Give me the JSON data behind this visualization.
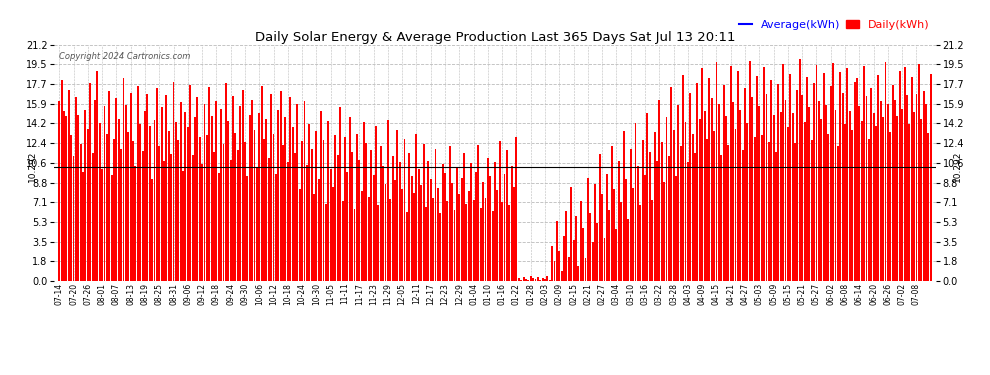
{
  "title": "Daily Solar Energy & Average Production Last 365 Days Sat Jul 13 20:11",
  "copyright": "Copyright 2024 Cartronics.com",
  "legend_average": "Average(kWh)",
  "legend_daily": "Daily(kWh)",
  "average_value": 10.292,
  "average_label": "10.292",
  "yticks": [
    0.0,
    1.8,
    3.5,
    5.3,
    7.1,
    8.8,
    10.6,
    12.4,
    14.2,
    15.9,
    17.7,
    19.5,
    21.2
  ],
  "bar_color": "#ff0000",
  "avg_line_color": "#000000",
  "background_color": "#ffffff",
  "grid_color": "#bbbbbb",
  "title_color": "#000000",
  "copyright_color": "#555555",
  "legend_avg_color": "#0000ff",
  "legend_daily_color": "#ff0000",
  "ylim": [
    0.0,
    21.2
  ],
  "figsize": [
    9.9,
    3.75
  ],
  "dpi": 100,
  "x_tick_labels": [
    "07-14",
    "07-20",
    "07-26",
    "08-01",
    "08-07",
    "08-13",
    "08-19",
    "08-25",
    "08-31",
    "09-06",
    "09-12",
    "09-18",
    "09-24",
    "09-30",
    "10-06",
    "10-12",
    "10-18",
    "10-24",
    "10-30",
    "11-05",
    "11-11",
    "11-17",
    "11-23",
    "11-29",
    "12-05",
    "12-11",
    "12-17",
    "12-23",
    "12-29",
    "01-04",
    "01-10",
    "01-16",
    "01-22",
    "01-28",
    "02-03",
    "02-09",
    "02-15",
    "02-21",
    "02-27",
    "03-04",
    "03-10",
    "03-16",
    "03-22",
    "03-28",
    "04-03",
    "04-09",
    "04-15",
    "04-21",
    "04-27",
    "05-03",
    "05-09",
    "05-15",
    "05-21",
    "05-27",
    "06-02",
    "06-08",
    "06-14",
    "06-20",
    "06-26",
    "07-02",
    "07-08"
  ],
  "x_tick_positions": [
    0,
    6,
    12,
    18,
    24,
    30,
    36,
    42,
    48,
    54,
    60,
    66,
    72,
    78,
    84,
    90,
    96,
    102,
    108,
    114,
    120,
    126,
    132,
    138,
    144,
    150,
    156,
    162,
    168,
    174,
    180,
    186,
    192,
    198,
    204,
    210,
    216,
    222,
    228,
    234,
    240,
    246,
    252,
    258,
    264,
    270,
    276,
    282,
    288,
    294,
    300,
    306,
    312,
    318,
    324,
    330,
    336,
    342,
    348,
    354,
    360
  ],
  "daily_values": [
    16.2,
    18.1,
    15.3,
    14.8,
    17.2,
    13.1,
    11.2,
    16.5,
    14.9,
    12.3,
    9.8,
    15.4,
    13.7,
    17.8,
    11.5,
    16.3,
    18.9,
    14.2,
    10.1,
    15.7,
    13.2,
    17.1,
    9.5,
    12.8,
    16.4,
    14.6,
    11.9,
    18.2,
    15.8,
    13.4,
    16.9,
    12.6,
    10.3,
    17.5,
    14.1,
    11.7,
    15.3,
    16.8,
    13.9,
    9.2,
    14.5,
    17.3,
    12.1,
    15.6,
    10.8,
    16.7,
    13.5,
    11.4,
    17.9,
    14.3,
    12.7,
    16.1,
    9.9,
    15.2,
    13.8,
    17.6,
    11.3,
    14.7,
    16.5,
    12.9,
    10.5,
    15.9,
    13.1,
    17.4,
    14.8,
    11.6,
    16.2,
    9.7,
    15.5,
    12.3,
    17.8,
    14.4,
    10.9,
    16.6,
    13.3,
    11.8,
    15.7,
    17.2,
    12.5,
    9.4,
    14.9,
    16.3,
    13.6,
    10.2,
    15.1,
    17.5,
    12.8,
    14.6,
    11.1,
    16.8,
    13.2,
    9.6,
    15.4,
    17.1,
    12.2,
    14.7,
    10.7,
    16.5,
    13.8,
    11.5,
    15.9,
    8.3,
    12.6,
    16.2,
    10.4,
    14.1,
    11.9,
    7.8,
    13.5,
    9.2,
    15.3,
    12.7,
    6.9,
    14.4,
    10.1,
    8.5,
    13.1,
    11.3,
    15.6,
    7.2,
    12.9,
    9.8,
    14.7,
    11.6,
    6.5,
    13.2,
    10.9,
    8.1,
    14.3,
    12.4,
    7.6,
    11.8,
    9.5,
    13.9,
    6.8,
    12.1,
    10.3,
    8.7,
    14.5,
    7.4,
    11.2,
    9.1,
    13.6,
    10.7,
    8.3,
    12.8,
    6.2,
    11.5,
    9.4,
    7.9,
    13.2,
    10.1,
    8.6,
    12.3,
    6.7,
    10.8,
    9.2,
    7.5,
    11.9,
    8.4,
    6.1,
    10.5,
    9.7,
    7.2,
    12.1,
    8.8,
    6.4,
    10.2,
    7.8,
    9.3,
    11.5,
    6.9,
    8.1,
    10.6,
    7.3,
    9.8,
    12.2,
    6.6,
    8.9,
    7.5,
    11.1,
    9.4,
    6.3,
    10.7,
    8.2,
    12.6,
    7.1,
    9.6,
    11.8,
    6.8,
    10.3,
    8.5,
    12.9,
    0.3,
    0.1,
    0.4,
    0.2,
    0.1,
    0.5,
    0.3,
    0.2,
    0.4,
    0.1,
    0.3,
    0.2,
    0.5,
    0.1,
    3.2,
    1.8,
    5.4,
    2.7,
    0.9,
    4.1,
    6.3,
    2.2,
    8.5,
    3.7,
    5.9,
    1.4,
    7.2,
    4.8,
    2.1,
    9.3,
    6.1,
    3.5,
    8.7,
    5.2,
    11.4,
    7.8,
    3.9,
    9.6,
    6.4,
    12.1,
    8.3,
    4.7,
    10.8,
    7.1,
    13.5,
    9.2,
    5.6,
    11.9,
    8.4,
    14.2,
    10.3,
    6.8,
    12.7,
    9.5,
    15.1,
    11.6,
    7.3,
    13.4,
    10.8,
    16.3,
    12.5,
    8.9,
    14.7,
    11.2,
    17.4,
    13.6,
    9.4,
    15.8,
    12.1,
    18.5,
    14.3,
    10.7,
    16.9,
    13.2,
    11.5,
    17.8,
    14.6,
    19.1,
    15.3,
    12.8,
    18.2,
    16.4,
    13.5,
    19.7,
    15.9,
    11.3,
    17.6,
    14.8,
    12.2,
    19.3,
    16.1,
    13.7,
    18.9,
    15.4,
    11.8,
    17.3,
    14.2,
    19.8,
    16.5,
    12.9,
    18.4,
    15.7,
    13.1,
    19.2,
    16.8,
    12.5,
    18.1,
    14.9,
    11.6,
    17.7,
    15.2,
    19.5,
    16.3,
    13.8,
    18.6,
    15.1,
    12.4,
    17.2,
    19.9,
    16.7,
    14.3,
    18.3,
    15.6,
    12.7,
    17.8,
    19.4,
    16.2,
    14.6,
    18.7,
    15.8,
    13.2,
    17.5,
    19.6,
    15.4,
    12.1,
    18.8,
    16.9,
    14.1,
    19.1,
    15.3,
    13.6,
    17.9,
    18.2,
    15.7,
    14.4,
    19.3,
    16.6,
    12.8,
    17.3,
    15.1,
    13.9,
    18.5,
    16.2,
    14.7,
    19.7,
    15.9,
    13.4,
    17.6,
    16.3,
    14.8,
    18.9,
    15.5,
    19.2,
    16.7,
    14.1,
    18.3,
    15.2,
    16.8,
    19.5,
    14.6,
    17.1,
    15.9,
    13.3,
    18.6
  ]
}
